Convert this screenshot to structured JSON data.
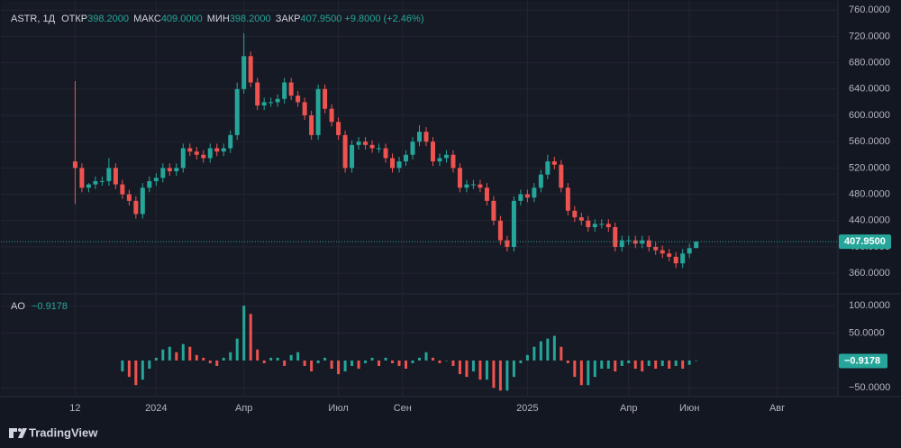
{
  "chart_data": [
    {
      "type": "candlestick",
      "legend": {
        "symbol": "ASTR, 1Д",
        "open_label": "ОТКР",
        "open": "398.2000",
        "high_label": "МАКС",
        "high": "409.0000",
        "low_label": "МИН",
        "low": "398.2000",
        "close_label": "ЗАКР",
        "close": "407.9500",
        "change": "+9.8000 (+2.46%)"
      },
      "up_color": "#26a69a",
      "down_color": "#ef5350",
      "open": [
        530,
        520,
        490,
        495,
        500,
        500,
        520,
        495,
        480,
        470,
        450,
        490,
        500,
        505,
        520,
        515,
        520,
        550,
        545,
        540,
        535,
        550,
        545,
        550,
        570,
        640,
        690,
        650,
        615,
        620,
        620,
        625,
        650,
        630,
        620,
        600,
        570,
        640,
        610,
        590,
        570,
        520,
        555,
        560,
        555,
        550,
        550,
        535,
        520,
        530,
        540,
        560,
        575,
        560,
        530,
        535,
        540,
        520,
        490,
        495,
        495,
        490,
        470,
        440,
        410,
        400,
        470,
        480,
        475,
        490,
        510,
        530,
        525,
        490,
        455,
        445,
        440,
        430,
        435,
        435,
        430,
        400,
        410,
        410,
        405,
        410,
        400,
        395,
        390,
        385,
        375,
        390,
        398.2
      ],
      "high": [
        652,
        527,
        497,
        507,
        507,
        535,
        527,
        502,
        487,
        477,
        497,
        507,
        512,
        527,
        527,
        527,
        557,
        557,
        552,
        547,
        557,
        557,
        557,
        577,
        650,
        725,
        697,
        657,
        627,
        627,
        632,
        657,
        657,
        637,
        627,
        607,
        647,
        647,
        617,
        597,
        577,
        562,
        567,
        567,
        562,
        557,
        557,
        542,
        537,
        547,
        567,
        585,
        582,
        567,
        542,
        547,
        547,
        527,
        502,
        502,
        502,
        497,
        477,
        447,
        417,
        477,
        487,
        487,
        497,
        517,
        540,
        537,
        532,
        497,
        462,
        452,
        447,
        442,
        442,
        442,
        437,
        417,
        417,
        417,
        417,
        417,
        407,
        402,
        397,
        392,
        397,
        405,
        409
      ],
      "low": [
        465,
        483,
        483,
        488,
        493,
        493,
        488,
        473,
        463,
        443,
        443,
        483,
        493,
        498,
        508,
        508,
        513,
        538,
        533,
        528,
        528,
        538,
        538,
        543,
        563,
        633,
        643,
        608,
        608,
        613,
        613,
        618,
        623,
        613,
        593,
        563,
        563,
        603,
        583,
        563,
        513,
        513,
        548,
        548,
        543,
        543,
        528,
        513,
        513,
        523,
        533,
        553,
        553,
        523,
        523,
        528,
        513,
        483,
        483,
        488,
        483,
        463,
        433,
        403,
        393,
        393,
        463,
        468,
        468,
        483,
        503,
        518,
        483,
        448,
        438,
        433,
        423,
        423,
        428,
        423,
        393,
        393,
        403,
        398,
        398,
        393,
        388,
        383,
        378,
        368,
        368,
        383,
        398.2
      ],
      "close": [
        520,
        490,
        495,
        500,
        500,
        520,
        495,
        480,
        470,
        450,
        490,
        500,
        505,
        520,
        515,
        520,
        550,
        545,
        540,
        535,
        550,
        545,
        550,
        570,
        640,
        690,
        650,
        615,
        620,
        620,
        625,
        650,
        630,
        620,
        600,
        570,
        640,
        610,
        590,
        570,
        520,
        555,
        560,
        555,
        550,
        550,
        535,
        520,
        530,
        540,
        560,
        575,
        560,
        530,
        535,
        540,
        520,
        490,
        495,
        495,
        490,
        470,
        440,
        410,
        400,
        470,
        480,
        475,
        490,
        510,
        530,
        525,
        490,
        455,
        445,
        440,
        430,
        435,
        435,
        430,
        400,
        410,
        410,
        405,
        410,
        400,
        395,
        390,
        385,
        375,
        390,
        398.2,
        407.95
      ],
      "last_price": {
        "value": 407.95,
        "label": "407.9500"
      },
      "xlim": [
        -11,
        113
      ],
      "xticks": [
        {
          "value": 0,
          "label": "12"
        },
        {
          "value": 12,
          "label": "2024"
        },
        {
          "value": 25,
          "label": "Апр"
        },
        {
          "value": 39,
          "label": "Июл"
        },
        {
          "value": 48.5,
          "label": "Сен"
        },
        {
          "value": 67,
          "label": "2025"
        },
        {
          "value": 82,
          "label": "Апр"
        },
        {
          "value": 91,
          "label": "Июн"
        },
        {
          "value": 104,
          "label": "Авг"
        }
      ],
      "ylim": [
        330,
        774
      ],
      "yticks": [
        {
          "value": 360,
          "label": "360.0000"
        },
        {
          "value": 400,
          "label": "400.0000"
        },
        {
          "value": 440,
          "label": "440.0000"
        },
        {
          "value": 480,
          "label": "480.0000"
        },
        {
          "value": 520,
          "label": "520.0000"
        },
        {
          "value": 560,
          "label": "560.0000"
        },
        {
          "value": 600,
          "label": "600.0000"
        },
        {
          "value": 640,
          "label": "640.0000"
        },
        {
          "value": 680,
          "label": "680.0000"
        },
        {
          "value": 720,
          "label": "720.0000"
        },
        {
          "value": 760,
          "label": "760.0000"
        }
      ],
      "grid": true
    },
    {
      "type": "bar",
      "name": "AO",
      "value_label": "−0.9178",
      "up_color": "#26a69a",
      "down_color": "#ef5350",
      "values": [
        null,
        null,
        null,
        null,
        null,
        null,
        null,
        -20,
        -30,
        -45,
        -35,
        -15,
        5,
        20,
        25,
        15,
        30,
        25,
        10,
        5,
        -5,
        -10,
        5,
        15,
        40,
        100,
        85,
        20,
        -5,
        5,
        5,
        -10,
        10,
        15,
        -10,
        -20,
        -5,
        5,
        -15,
        -25,
        -20,
        -10,
        -15,
        -5,
        5,
        -10,
        5,
        -5,
        -10,
        -15,
        -5,
        5,
        15,
        5,
        -5,
        0,
        -10,
        -25,
        -30,
        -20,
        -35,
        -35,
        -50,
        -55,
        -55,
        -30,
        -5,
        10,
        25,
        35,
        40,
        45,
        25,
        -5,
        -30,
        -45,
        -45,
        -30,
        -15,
        -15,
        -20,
        -10,
        -5,
        -15,
        -20,
        -10,
        -15,
        -10,
        -15,
        -10,
        -15,
        -8,
        -0.9178
      ],
      "last_value": {
        "value": -0.9178,
        "label": "−0.9178"
      },
      "ylim": [
        -66,
        120
      ],
      "yticks": [
        {
          "value": -50,
          "label": "−50.0000"
        },
        {
          "value": 50,
          "label": "50.0000"
        },
        {
          "value": 100,
          "label": "100.0000"
        }
      ],
      "grid": true
    }
  ],
  "footer": {
    "brand": "TradingView"
  }
}
